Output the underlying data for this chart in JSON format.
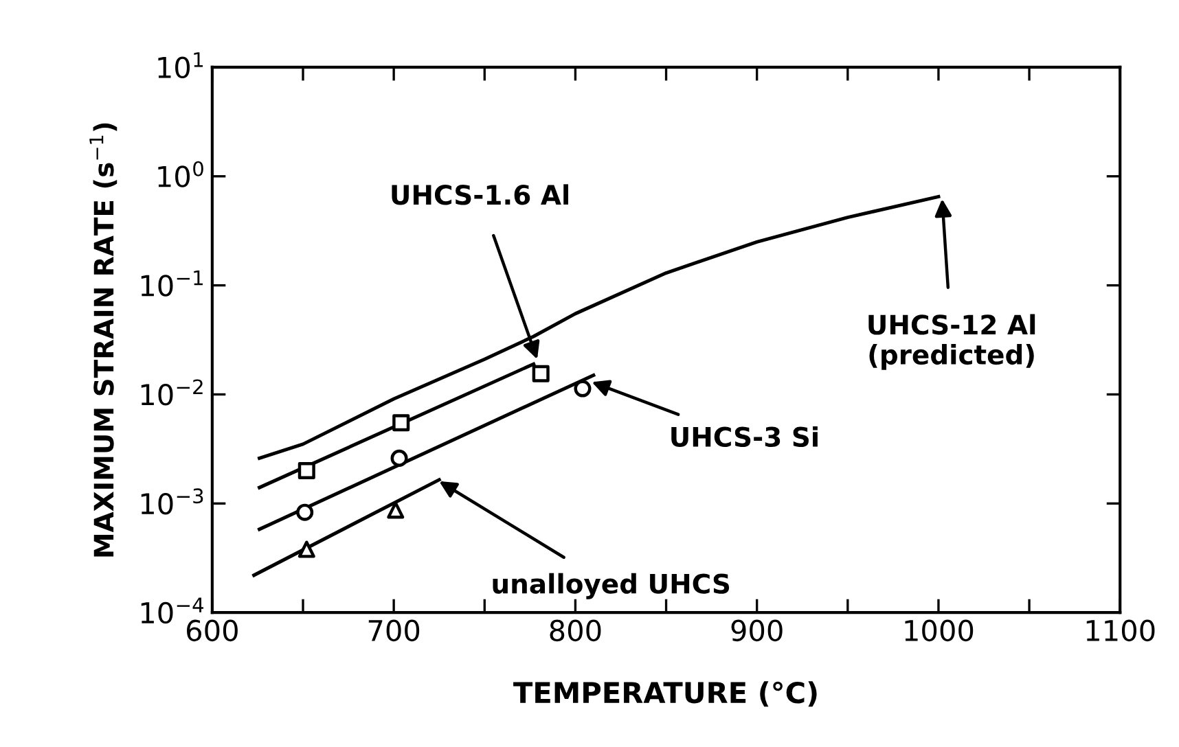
{
  "chart_data": {
    "type": "line",
    "xlabel": "TEMPERATURE (°C)",
    "ylabel": "MAXIMUM STRAIN RATE (s$^{−1}$)",
    "log": "y",
    "grid": false,
    "xlim": [
      600,
      1100
    ],
    "ylim": [
      0.0001,
      10
    ],
    "xticks": [
      600,
      {
        "value": 650,
        "label": null
      },
      700,
      {
        "value": 750,
        "label": null
      },
      800,
      {
        "value": 850,
        "label": null
      },
      900,
      {
        "value": 950,
        "label": null
      },
      1000,
      {
        "value": 1050,
        "label": null
      },
      1100
    ],
    "yticks": [
      {
        "value": 0.0001,
        "label": "10$^{−4}$"
      },
      {
        "value": 0.001,
        "label": "10$^{−3}$"
      },
      {
        "value": 0.01,
        "label": "10$^{−2}$"
      },
      {
        "value": 0.1,
        "label": "10$^{−1}$"
      },
      {
        "value": 1,
        "label": "10$^{0}$"
      },
      {
        "value": 10,
        "label": "10$^{1}$"
      }
    ],
    "series": [
      {
        "marker": "none",
        "line_style": "solid",
        "color": "#000000",
        "x": [
          626,
          650,
          700,
          750,
          777,
          800,
          850,
          900,
          950,
          1000
        ],
        "values": [
          0.0026,
          0.0035,
          0.0091,
          0.021,
          0.034,
          0.055,
          0.13,
          0.25,
          0.42,
          0.65
        ]
      },
      {
        "marker": "none",
        "line_style": "solid",
        "color": "#000000",
        "x": [
          626,
          777
        ],
        "values": [
          0.0014,
          0.019
        ]
      },
      {
        "marker": "none",
        "line_style": "solid",
        "color": "#000000",
        "x": [
          626,
          810
        ],
        "values": [
          0.00058,
          0.015
        ]
      },
      {
        "marker": "none",
        "line_style": "solid",
        "color": "#000000",
        "x": [
          623,
          725
        ],
        "values": [
          0.00022,
          0.00165
        ]
      },
      {
        "type": "scatter",
        "marker": "square",
        "color": "#000000",
        "x": [
          652,
          704,
          781
        ],
        "values": [
          0.002,
          0.0055,
          0.0155
        ]
      },
      {
        "type": "scatter",
        "marker": "circle",
        "color": "#000000",
        "x": [
          651,
          703,
          804
        ],
        "values": [
          0.00083,
          0.0026,
          0.0113
        ]
      },
      {
        "type": "scatter",
        "marker": "triangle",
        "color": "#000000",
        "x": [
          652,
          701
        ],
        "values": [
          0.00038,
          0.00087
        ]
      }
    ],
    "annotations": [
      {
        "text": "UHCS-1.6 Al",
        "x": 779,
        "y": 0.021
      },
      {
        "text": "UHCS-12 Al\n(predicted)",
        "x": 1002,
        "y": 0.62
      },
      {
        "text": "UHCS-3 Si",
        "x": 809,
        "y": 0.013
      },
      {
        "text": "unalloyed UHCS",
        "x": 725,
        "y": 0.0016
      }
    ]
  }
}
